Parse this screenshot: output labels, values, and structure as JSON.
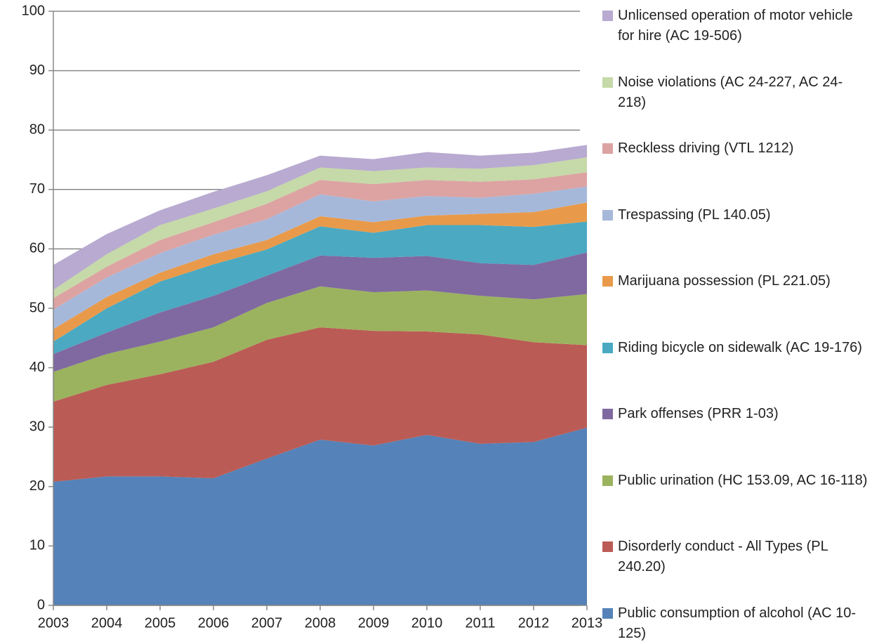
{
  "chart_data": {
    "type": "stacked_area",
    "x": [
      2003,
      2004,
      2005,
      2006,
      2007,
      2008,
      2009,
      2010,
      2011,
      2012,
      2013
    ],
    "xlim": [
      2003,
      2013
    ],
    "xticks": [
      2003,
      2004,
      2005,
      2006,
      2007,
      2008,
      2009,
      2010,
      2011,
      2012,
      2013
    ],
    "ylim": [
      0,
      100
    ],
    "yticks": [
      0,
      10,
      20,
      30,
      40,
      50,
      60,
      70,
      80,
      90,
      100
    ],
    "grid": true,
    "legend": "right",
    "series": [
      {
        "name": "Public consumption of alcohol (AC 10-125)",
        "color": "#5582b8",
        "values": [
          20.8,
          21.7,
          21.7,
          21.4,
          24.7,
          27.9,
          26.9,
          28.7,
          27.2,
          27.5,
          29.9
        ]
      },
      {
        "name": "Disorderly conduct - All Types (PL 240.20)",
        "color": "#bb5b55",
        "values": [
          13.5,
          15.4,
          17.2,
          19.6,
          20.0,
          18.9,
          19.3,
          17.4,
          18.4,
          16.8,
          13.9
        ]
      },
      {
        "name": "Public urination (HC 153.09, AC 16-118)",
        "color": "#9bb35e",
        "values": [
          5.0,
          5.2,
          5.5,
          5.8,
          6.2,
          6.9,
          6.5,
          6.9,
          6.5,
          7.2,
          8.6
        ]
      },
      {
        "name": "Park offenses (PRR 1-03)",
        "color": "#8069a0",
        "values": [
          3.0,
          3.6,
          4.9,
          5.3,
          4.6,
          5.2,
          5.8,
          5.8,
          5.5,
          5.8,
          7.0
        ]
      },
      {
        "name": "Riding bicycle on sidewalk (AC 19-176)",
        "color": "#4ba9c2",
        "values": [
          2.1,
          4.1,
          5.2,
          5.3,
          4.4,
          4.9,
          4.2,
          5.2,
          6.4,
          6.4,
          5.2
        ]
      },
      {
        "name": "Marijuana possession (PL 221.05)",
        "color": "#e89a4a",
        "values": [
          2.1,
          1.9,
          1.5,
          1.7,
          1.6,
          1.7,
          1.8,
          1.6,
          1.9,
          2.5,
          3.2
        ]
      },
      {
        "name": "Trespassing (PL 140.05)",
        "color": "#a6b8da",
        "values": [
          3.3,
          3.3,
          3.3,
          3.3,
          3.5,
          3.7,
          3.5,
          3.3,
          2.7,
          3.1,
          2.7
        ]
      },
      {
        "name": "Reckless driving (VTL 1212)",
        "color": "#dca3a2",
        "values": [
          1.9,
          1.8,
          2.2,
          2.1,
          2.6,
          2.4,
          2.9,
          2.7,
          2.7,
          2.4,
          2.4
        ]
      },
      {
        "name": "Noise violations (AC 24-227, AC 24-218)",
        "color": "#c6d9a8",
        "values": [
          1.4,
          2.1,
          2.5,
          2.3,
          2.1,
          2.1,
          2.2,
          2.1,
          2.2,
          2.4,
          2.5
        ]
      },
      {
        "name": "Unlicensed operation of motor vehicle for hire (AC 19-506)",
        "color": "#b8aad0",
        "values": [
          4.2,
          3.4,
          2.5,
          2.8,
          2.7,
          2.0,
          2.0,
          2.6,
          2.2,
          2.1,
          2.1
        ]
      }
    ]
  }
}
